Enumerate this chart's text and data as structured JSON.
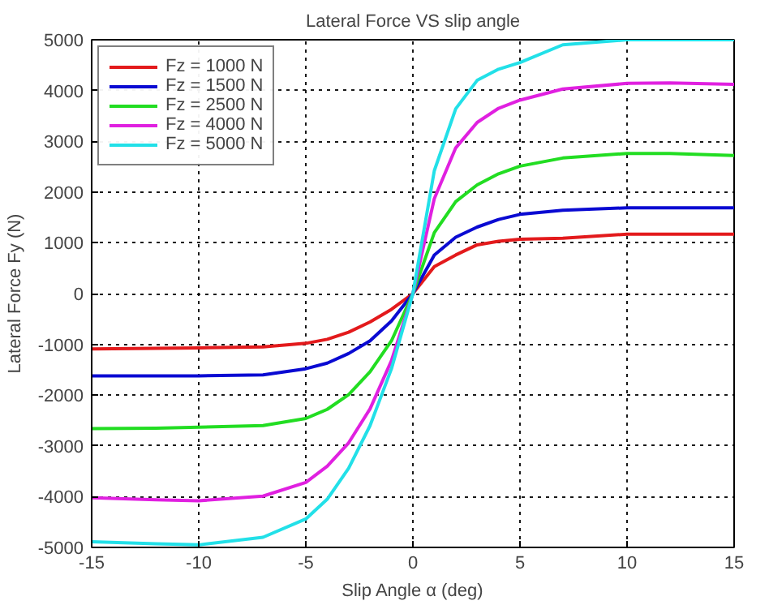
{
  "chart_data": {
    "type": "line",
    "title": "Lateral Force VS slip angle",
    "xlabel": "Slip Angle α (deg)",
    "ylabel": "Lateral Force Fy (N)",
    "x": [
      -15,
      -12,
      -10,
      -7,
      -5,
      -4,
      -3,
      -2,
      -1,
      0,
      1,
      2,
      3,
      4,
      5,
      7,
      10,
      12,
      15
    ],
    "series": [
      {
        "name": "Fz = 1000 N",
        "color": "#e31a1c",
        "values": [
          -1090,
          -1080,
          -1070,
          -1050,
          -980,
          -900,
          -760,
          -560,
          -310,
          0,
          530,
          760,
          960,
          1030,
          1070,
          1090,
          1170,
          1170,
          1170
        ]
      },
      {
        "name": "Fz = 1500 N",
        "color": "#0a0ad2",
        "values": [
          -1620,
          -1620,
          -1620,
          -1600,
          -1480,
          -1370,
          -1180,
          -930,
          -540,
          0,
          760,
          1110,
          1310,
          1460,
          1560,
          1640,
          1690,
          1690,
          1690
        ]
      },
      {
        "name": "Fz = 2500 N",
        "color": "#22dd22",
        "values": [
          -2660,
          -2650,
          -2630,
          -2600,
          -2460,
          -2280,
          -1990,
          -1540,
          -930,
          0,
          1200,
          1810,
          2140,
          2360,
          2510,
          2670,
          2760,
          2760,
          2720
        ]
      },
      {
        "name": "Fz = 4000 N",
        "color": "#e020e0",
        "values": [
          -4020,
          -4060,
          -4080,
          -3990,
          -3720,
          -3400,
          -2940,
          -2270,
          -1320,
          0,
          1870,
          2870,
          3370,
          3650,
          3810,
          4030,
          4140,
          4150,
          4120
        ]
      },
      {
        "name": "Fz = 5000 N",
        "color": "#22e0e8",
        "values": [
          -4890,
          -4930,
          -4950,
          -4800,
          -4440,
          -4050,
          -3440,
          -2600,
          -1480,
          0,
          2420,
          3640,
          4200,
          4420,
          4550,
          4900,
          5000,
          5000,
          5000
        ]
      }
    ],
    "xlim": [
      -15,
      15
    ],
    "ylim": [
      -5000,
      5000
    ],
    "xticks": [
      -15,
      -10,
      -5,
      0,
      5,
      10,
      15
    ],
    "yticks": [
      -5000,
      -4000,
      -3000,
      -2000,
      -1000,
      0,
      1000,
      2000,
      3000,
      4000,
      5000
    ],
    "grid": true,
    "legend": "top left",
    "line_style": "solid",
    "marker": "none"
  }
}
